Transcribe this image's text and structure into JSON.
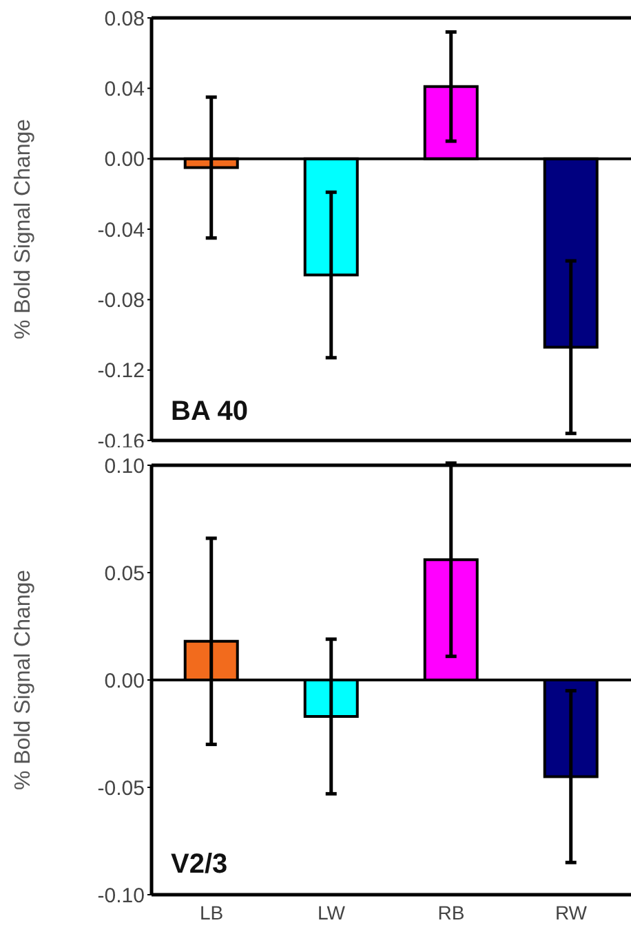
{
  "chart_data": [
    {
      "type": "bar",
      "ylabel": "% Bold Signal Change",
      "annotations": [
        "BA 40"
      ],
      "categories": [
        null,
        null,
        null,
        null
      ],
      "values": [
        -0.005,
        -0.066,
        0.041,
        -0.107
      ],
      "errors": [
        0.04,
        0.047,
        0.031,
        0.049
      ],
      "colors": [
        "#f26b1d",
        "#00ffff",
        "#ff00ff",
        "#000080"
      ],
      "ylim": [
        -0.16,
        0.08
      ],
      "yticks": [
        {
          "value": -0.16,
          "label": "-0.16"
        },
        {
          "value": -0.12,
          "label": "-0.12"
        },
        {
          "value": -0.08,
          "label": "-0.08"
        },
        {
          "value": -0.04,
          "label": "-0.04"
        },
        {
          "value": 0,
          "label": "0.00"
        },
        {
          "value": 0.04,
          "label": "0.04"
        },
        {
          "value": 0.08,
          "label": "0.08"
        }
      ],
      "tick_labels": "y"
    },
    {
      "type": "bar",
      "ylabel": "% Bold Signal Change",
      "annotations": [
        "V2/3"
      ],
      "categories": [
        "LB",
        "LW",
        "RB",
        "RW"
      ],
      "values": [
        0.018,
        -0.017,
        0.056,
        -0.045
      ],
      "errors": [
        0.048,
        0.036,
        0.045,
        0.04
      ],
      "colors": [
        "#f26b1d",
        "#00ffff",
        "#ff00ff",
        "#000080"
      ],
      "ylim": [
        -0.1,
        0.1
      ],
      "yticks": [
        {
          "value": -0.1,
          "label": "-0.10"
        },
        {
          "value": -0.05,
          "label": "-0.05"
        },
        {
          "value": 0,
          "label": "0.00"
        },
        {
          "value": 0.05,
          "label": "0.05"
        },
        {
          "value": 0.1,
          "label": "0.10"
        }
      ]
    }
  ]
}
